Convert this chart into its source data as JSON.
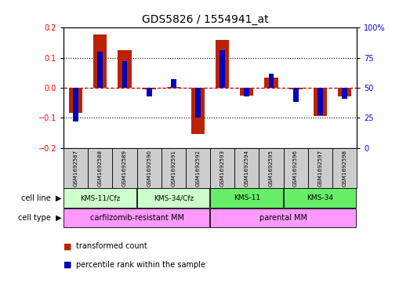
{
  "title": "GDS5826 / 1554941_at",
  "samples": [
    "GSM1692587",
    "GSM1692588",
    "GSM1692589",
    "GSM1692590",
    "GSM1692591",
    "GSM1692592",
    "GSM1692593",
    "GSM1692594",
    "GSM1692595",
    "GSM1692596",
    "GSM1692597",
    "GSM1692598"
  ],
  "transformed_count": [
    -0.083,
    0.178,
    0.126,
    -0.005,
    0.003,
    -0.155,
    0.16,
    -0.025,
    0.033,
    -0.005,
    -0.095,
    -0.028
  ],
  "percentile_rank": [
    22,
    80,
    72,
    43,
    57,
    25,
    81,
    43,
    62,
    38,
    27,
    41
  ],
  "ylim_left": [
    -0.2,
    0.2
  ],
  "ylim_right": [
    0,
    100
  ],
  "yticks_left": [
    -0.2,
    -0.1,
    0.0,
    0.1,
    0.2
  ],
  "yticks_right": [
    0,
    25,
    50,
    75,
    100
  ],
  "cell_line_groups": [
    {
      "label": "KMS-11/Cfz",
      "start": 0,
      "end": 3,
      "color": "#ccffcc"
    },
    {
      "label": "KMS-34/Cfz",
      "start": 3,
      "end": 6,
      "color": "#ccffcc"
    },
    {
      "label": "KMS-11",
      "start": 6,
      "end": 9,
      "color": "#66ee66"
    },
    {
      "label": "KMS-34",
      "start": 9,
      "end": 12,
      "color": "#66ee66"
    }
  ],
  "cell_type_groups": [
    {
      "label": "carfilzomib-resistant MM",
      "start": 0,
      "end": 6,
      "color": "#ff99ff"
    },
    {
      "label": "parental MM",
      "start": 6,
      "end": 12,
      "color": "#ff99ff"
    }
  ],
  "bar_color": "#bb2200",
  "dot_color": "#0000bb",
  "zero_line_color": "#cc0000",
  "grid_color": "#000000",
  "sample_box_color": "#cccccc",
  "legend_items": [
    {
      "label": "transformed count",
      "color": "#bb2200"
    },
    {
      "label": "percentile rank within the sample",
      "color": "#0000bb"
    }
  ]
}
